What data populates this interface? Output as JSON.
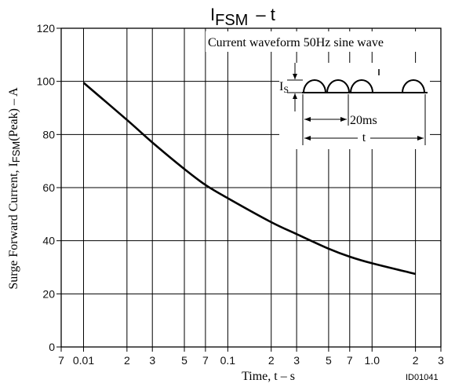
{
  "chart_data": {
    "type": "line",
    "title_main": "I",
    "title_sub": "FSM",
    "title_rest": "– t",
    "xlabel": "Time, t  – s",
    "ylabel_main": "Surge Forward Current, I",
    "ylabel_sub": "FSM",
    "ylabel_rest": "(Peak)  – A",
    "x_scale": "log",
    "xlim": [
      0.007,
      3
    ],
    "ylim": [
      0,
      120
    ],
    "x_tick_labels": [
      {
        "value": 0.007,
        "label": "7"
      },
      {
        "value": 0.01,
        "label": "0.01"
      },
      {
        "value": 0.02,
        "label": "2"
      },
      {
        "value": 0.03,
        "label": "3"
      },
      {
        "value": 0.05,
        "label": "5"
      },
      {
        "value": 0.07,
        "label": "7"
      },
      {
        "value": 0.1,
        "label": "0.1"
      },
      {
        "value": 0.2,
        "label": "2"
      },
      {
        "value": 0.3,
        "label": "3"
      },
      {
        "value": 0.5,
        "label": "5"
      },
      {
        "value": 0.7,
        "label": "7"
      },
      {
        "value": 1.0,
        "label": "1.0"
      },
      {
        "value": 2,
        "label": "2"
      },
      {
        "value": 3,
        "label": "3"
      }
    ],
    "y_ticks": [
      0,
      20,
      40,
      60,
      80,
      100,
      120
    ],
    "series": [
      {
        "x": [
          0.01,
          0.02,
          0.03,
          0.05,
          0.07,
          0.1,
          0.2,
          0.3,
          0.5,
          0.7,
          1.0,
          2.0
        ],
        "y": [
          99.5,
          85.5,
          77,
          67,
          61,
          56,
          47,
          42.5,
          37,
          34,
          31.5,
          27.5
        ]
      }
    ],
    "inset": {
      "caption": "Current waveform 50Hz sine wave",
      "amplitude_label": "I",
      "amplitude_sub": "S",
      "period_label": "20ms",
      "duration_label": "t"
    },
    "figure_id": "ID01041",
    "grid": true
  }
}
